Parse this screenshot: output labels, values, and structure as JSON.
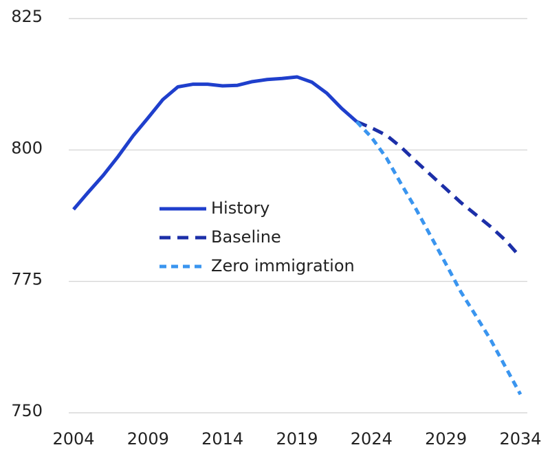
{
  "chart_data": {
    "type": "line",
    "x": [
      2004,
      2005,
      2006,
      2007,
      2008,
      2009,
      2010,
      2011,
      2012,
      2013,
      2014,
      2015,
      2016,
      2017,
      2018,
      2019,
      2020,
      2021,
      2022,
      2023,
      2024,
      2025,
      2026,
      2027,
      2028,
      2029,
      2030,
      2031,
      2032,
      2033,
      2034
    ],
    "series": [
      {
        "name": "History",
        "color": "#1f3fcc",
        "style": "solid",
        "values": [
          788.7,
          792,
          795.2,
          798.8,
          802.7,
          806.1,
          809.6,
          812,
          812.5,
          812.5,
          812.2,
          812.3,
          813,
          813.4,
          813.6,
          813.9,
          812.9,
          810.8,
          807.9,
          805.4,
          null,
          null,
          null,
          null,
          null,
          null,
          null,
          null,
          null,
          null,
          null
        ]
      },
      {
        "name": "Baseline",
        "color": "#1c2fa8",
        "style": "dashed",
        "values": [
          null,
          null,
          null,
          null,
          null,
          null,
          null,
          null,
          null,
          null,
          null,
          null,
          null,
          null,
          null,
          null,
          null,
          null,
          null,
          805.4,
          804.2,
          802.8,
          800.5,
          797.8,
          795.2,
          792.6,
          790,
          787.7,
          785.4,
          782.8,
          779.6
        ]
      },
      {
        "name": "Zero immigration",
        "color": "#3a95ef",
        "style": "dotted",
        "values": [
          null,
          null,
          null,
          null,
          null,
          null,
          null,
          null,
          null,
          null,
          null,
          null,
          null,
          null,
          null,
          null,
          null,
          null,
          null,
          805.4,
          802.4,
          798.5,
          793.5,
          788.7,
          783.5,
          778.3,
          773,
          768.5,
          763.9,
          758.7,
          753.5
        ]
      }
    ],
    "xlim": [
      2004,
      2034
    ],
    "xticks": [
      2004,
      2009,
      2014,
      2019,
      2024,
      2029,
      2034
    ],
    "ylim": [
      750,
      825
    ],
    "yticks": [
      750,
      775,
      800,
      825
    ],
    "grid": true,
    "legend": "center-left"
  }
}
